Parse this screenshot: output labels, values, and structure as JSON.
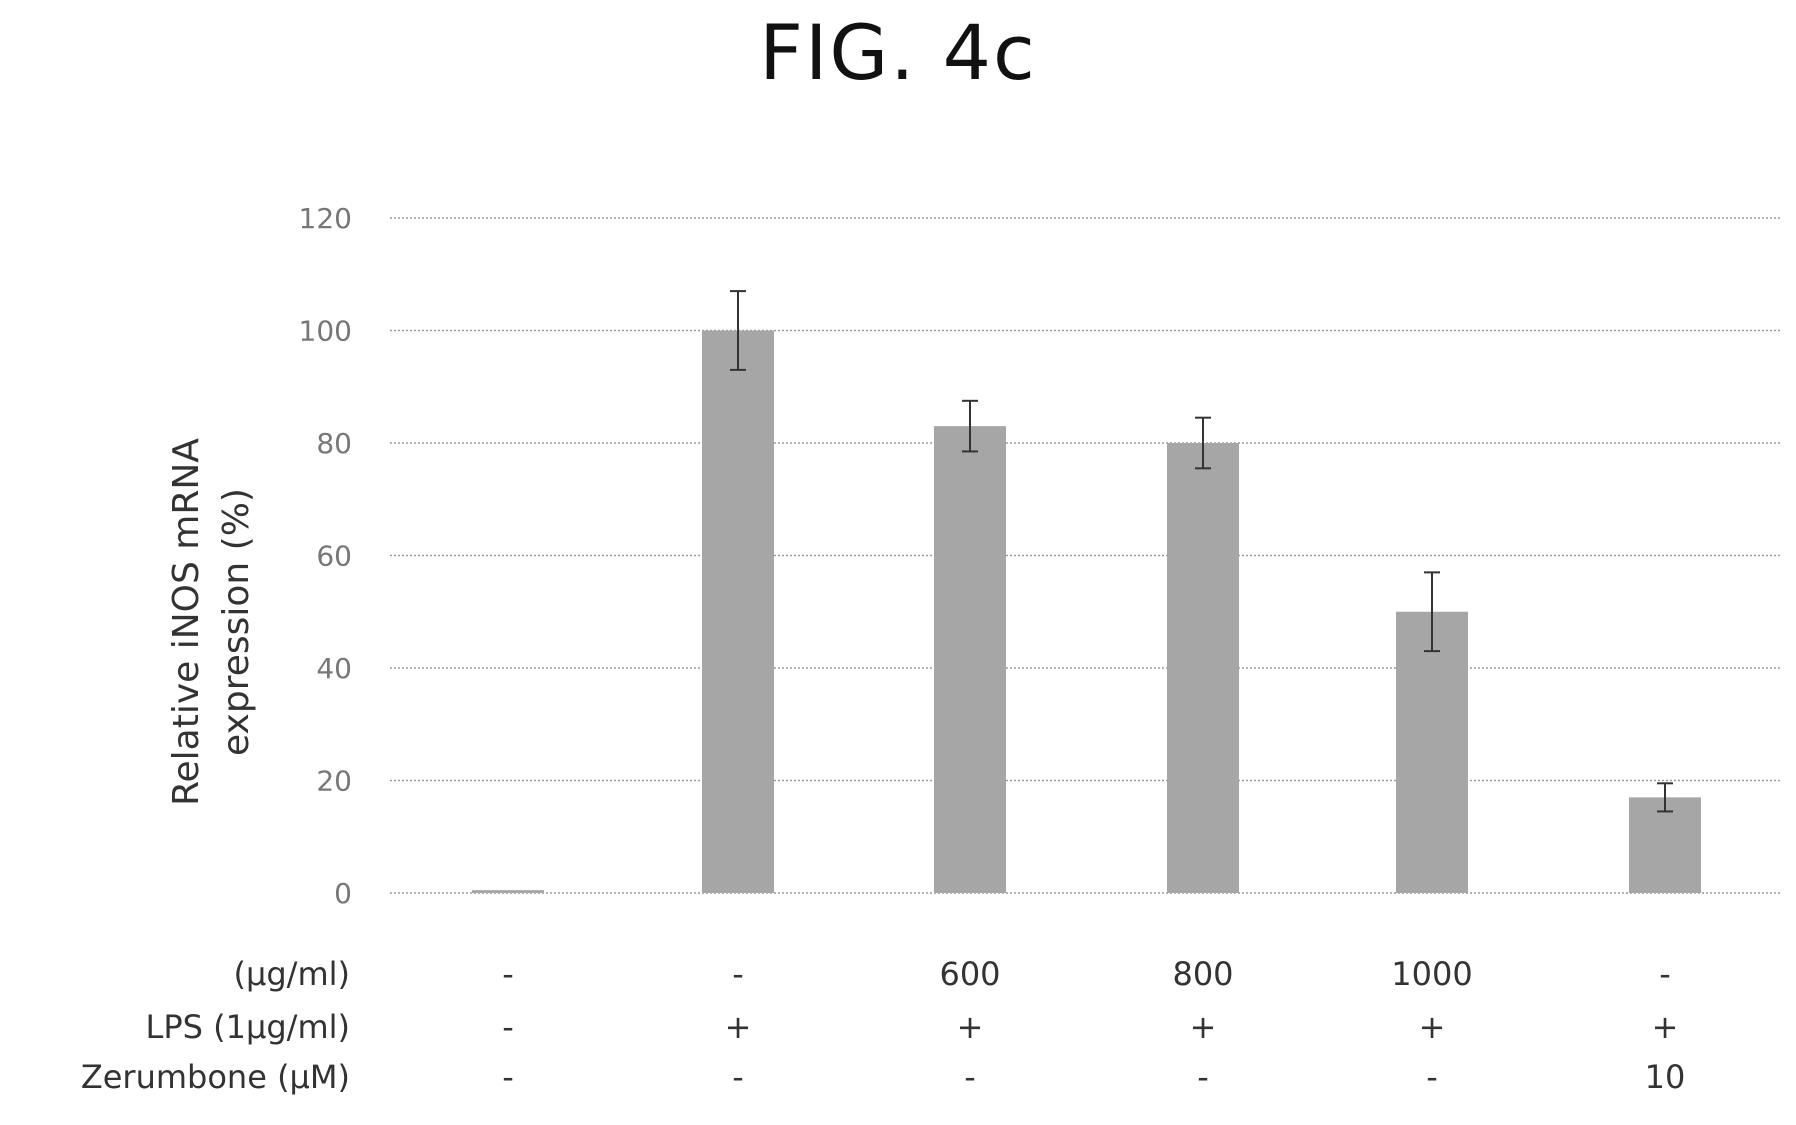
{
  "figure_title": "FIG. 4c",
  "chart_data": {
    "type": "bar",
    "ylabel_line1": "Relative iNOS mRNA",
    "ylabel_line2": "expression (%)",
    "ylim": [
      0,
      120
    ],
    "yticks": [
      0,
      20,
      40,
      60,
      80,
      100,
      120
    ],
    "grid": true,
    "values": [
      0.5,
      100,
      83,
      80,
      50,
      17
    ],
    "errors": [
      0.3,
      7,
      4.5,
      4.5,
      7,
      2.5
    ],
    "bar_color": "#a6a6a6",
    "table": {
      "rows": [
        {
          "label": "(μg/ml)",
          "cells": [
            "-",
            "-",
            "600",
            "800",
            "1000",
            "-"
          ]
        },
        {
          "label": "LPS  (1μg/ml)",
          "cells": [
            "-",
            "+",
            "+",
            "+",
            "+",
            "+"
          ]
        },
        {
          "label": "Zerumbone (μM)",
          "cells": [
            "-",
            "-",
            "-",
            "-",
            "-",
            "10"
          ]
        }
      ]
    }
  }
}
